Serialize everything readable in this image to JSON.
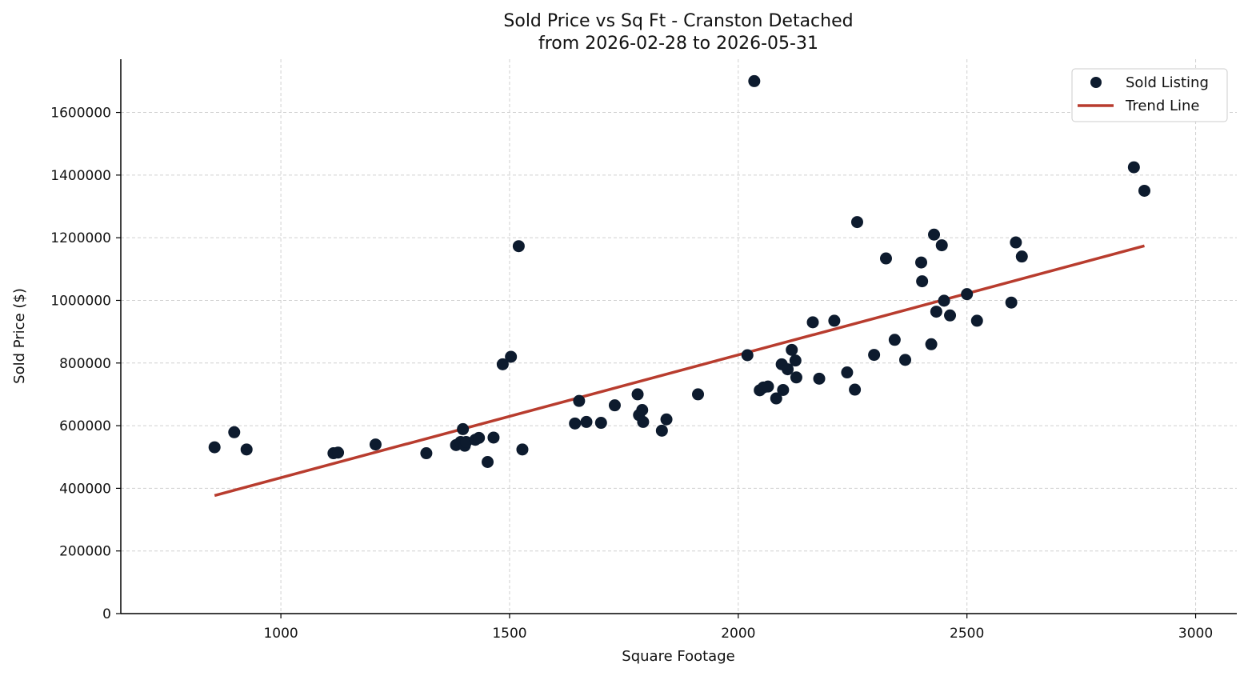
{
  "chart_data": {
    "type": "scatter",
    "title": "Sold Price vs Sq Ft - Cranston Detached",
    "subtitle": "from 2026-02-28 to 2026-05-31",
    "xlabel": "Square Footage",
    "ylabel": "Sold Price ($)",
    "xlim": [
      650,
      3090
    ],
    "ylim": [
      0,
      1770000
    ],
    "x_ticks": [
      1000,
      1500,
      2000,
      2500,
      3000
    ],
    "y_ticks": [
      0,
      200000,
      400000,
      600000,
      800000,
      1000000,
      1200000,
      1400000,
      1600000
    ],
    "grid": true,
    "legend_position": "top-right",
    "legend": [
      "Sold Listing",
      "Trend Line"
    ],
    "colors": {
      "points": "#0d1b2e",
      "trend": "#b83c2e"
    },
    "series": [
      {
        "name": "Sold Listing",
        "type": "scatter",
        "points": [
          [
            855,
            531000
          ],
          [
            898,
            579000
          ],
          [
            925,
            524000
          ],
          [
            1115,
            512000
          ],
          [
            1125,
            514000
          ],
          [
            1207,
            540000
          ],
          [
            1318,
            512000
          ],
          [
            1383,
            538000
          ],
          [
            1393,
            548000
          ],
          [
            1398,
            589000
          ],
          [
            1402,
            536000
          ],
          [
            1405,
            548000
          ],
          [
            1425,
            555000
          ],
          [
            1433,
            561000
          ],
          [
            1452,
            484000
          ],
          [
            1465,
            562000
          ],
          [
            1485,
            796000
          ],
          [
            1503,
            820000
          ],
          [
            1520,
            1173000
          ],
          [
            1528,
            524000
          ],
          [
            1643,
            607000
          ],
          [
            1652,
            679000
          ],
          [
            1668,
            612000
          ],
          [
            1700,
            609000
          ],
          [
            1730,
            665000
          ],
          [
            1780,
            700000
          ],
          [
            1783,
            634000
          ],
          [
            1790,
            650000
          ],
          [
            1792,
            612000
          ],
          [
            1833,
            584000
          ],
          [
            1843,
            620000
          ],
          [
            1912,
            700000
          ],
          [
            2020,
            825000
          ],
          [
            2035,
            1700000
          ],
          [
            2047,
            713000
          ],
          [
            2055,
            722000
          ],
          [
            2065,
            725000
          ],
          [
            2083,
            687000
          ],
          [
            2095,
            796000
          ],
          [
            2098,
            714000
          ],
          [
            2108,
            780000
          ],
          [
            2117,
            842000
          ],
          [
            2125,
            808000
          ],
          [
            2127,
            754000
          ],
          [
            2163,
            930000
          ],
          [
            2177,
            750000
          ],
          [
            2210,
            935000
          ],
          [
            2238,
            770000
          ],
          [
            2255,
            715000
          ],
          [
            2260,
            1250000
          ],
          [
            2297,
            826000
          ],
          [
            2323,
            1134000
          ],
          [
            2342,
            874000
          ],
          [
            2365,
            810000
          ],
          [
            2400,
            1121000
          ],
          [
            2402,
            1061000
          ],
          [
            2422,
            860000
          ],
          [
            2428,
            1210000
          ],
          [
            2433,
            964000
          ],
          [
            2445,
            1176000
          ],
          [
            2450,
            999000
          ],
          [
            2463,
            952000
          ],
          [
            2500,
            1020000
          ],
          [
            2522,
            935000
          ],
          [
            2597,
            993000
          ],
          [
            2607,
            1185000
          ],
          [
            2620,
            1140000
          ],
          [
            2865,
            1425000
          ],
          [
            2888,
            1350000
          ]
        ]
      },
      {
        "name": "Trend Line",
        "type": "line",
        "x": [
          855,
          2888
        ],
        "y": [
          377000,
          1174000
        ]
      }
    ]
  }
}
